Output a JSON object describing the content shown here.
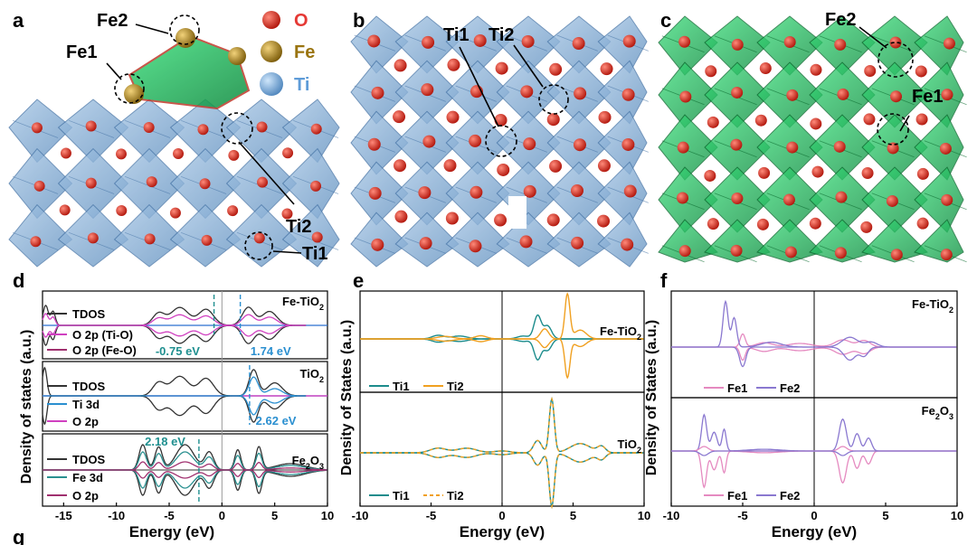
{
  "panels": {
    "a": {
      "letter": "a",
      "site_labels": [
        "Fe1",
        "Fe2",
        "Ti2",
        "Ti1"
      ],
      "legend": [
        {
          "label": "O",
          "color": "#e53935"
        },
        {
          "label": "Fe",
          "color": "#b8860b"
        },
        {
          "label": "Ti",
          "color": "#6fa8dc"
        }
      ]
    },
    "b": {
      "letter": "b",
      "site_labels": [
        "Ti1",
        "Ti2"
      ]
    },
    "c": {
      "letter": "c",
      "site_labels": [
        "Fe2",
        "Fe1"
      ]
    },
    "g": {
      "letter": "g"
    }
  },
  "colors": {
    "octahedra_blue": "#7fa9cf",
    "octahedra_green": "#1fbf5f",
    "oxygen": "#d42a1f",
    "iron": "#b8860b",
    "tdos": "#333333",
    "ti1": "#1c8c8c",
    "ti2": "#f0a020",
    "fe1": "#e58ac0",
    "fe2": "#8a78d0",
    "ti3d": "#2a8fd0",
    "o2p": "#d040c0"
  },
  "chart_data": [
    {
      "type": "line",
      "panel": "d",
      "ylabel": "Density of states (a.u.)",
      "xlabel": "Energy (eV)",
      "xlim": [
        -17,
        10
      ],
      "xticks": [
        -15,
        -10,
        -5,
        0,
        5,
        10
      ],
      "subplots": [
        {
          "label": "Fe-TiO2",
          "series": [
            {
              "name": "TDOS"
            },
            {
              "name": "O 2p (Ti-O)"
            },
            {
              "name": "O 2p (Fe-O)"
            }
          ],
          "annotations": [
            "-0.75 eV",
            "1.74 eV"
          ]
        },
        {
          "label": "TiO2",
          "series": [
            {
              "name": "TDOS"
            },
            {
              "name": "Ti 3d"
            },
            {
              "name": "O 2p"
            }
          ],
          "annotations": [
            "2.62 eV"
          ]
        },
        {
          "label": "Fe2O3",
          "series": [
            {
              "name": "TDOS"
            },
            {
              "name": "Fe 3d"
            },
            {
              "name": "O 2p"
            }
          ],
          "annotations": [
            "2.18 eV"
          ]
        }
      ]
    },
    {
      "type": "line",
      "panel": "e",
      "ylabel": "Density of States (a.u.)",
      "xlabel": "Energy (eV)",
      "xlim": [
        -10,
        10
      ],
      "xticks": [
        -10,
        -5,
        0,
        5,
        10
      ],
      "subplots": [
        {
          "label": "Fe-TiO2",
          "series": [
            {
              "name": "Ti1"
            },
            {
              "name": "Ti2"
            }
          ]
        },
        {
          "label": "TiO2",
          "series": [
            {
              "name": "Ti1"
            },
            {
              "name": "Ti2"
            }
          ]
        }
      ]
    },
    {
      "type": "line",
      "panel": "f",
      "ylabel": "Density of States (a.u.)",
      "xlabel": "Energy (eV)",
      "xlim": [
        -10,
        10
      ],
      "xticks": [
        -10,
        -5,
        0,
        5,
        10
      ],
      "subplots": [
        {
          "label": "Fe-TiO2",
          "series": [
            {
              "name": "Fe1"
            },
            {
              "name": "Fe2"
            }
          ]
        },
        {
          "label": "Fe2O3",
          "series": [
            {
              "name": "Fe1"
            },
            {
              "name": "Fe2"
            }
          ]
        }
      ]
    }
  ],
  "text": {
    "d_letter": "d",
    "e_letter": "e",
    "f_letter": "f",
    "tdos": "TDOS",
    "ti1": "Ti1",
    "ti2": "Ti2",
    "fe1": "Fe1",
    "fe2": "Fe2"
  }
}
